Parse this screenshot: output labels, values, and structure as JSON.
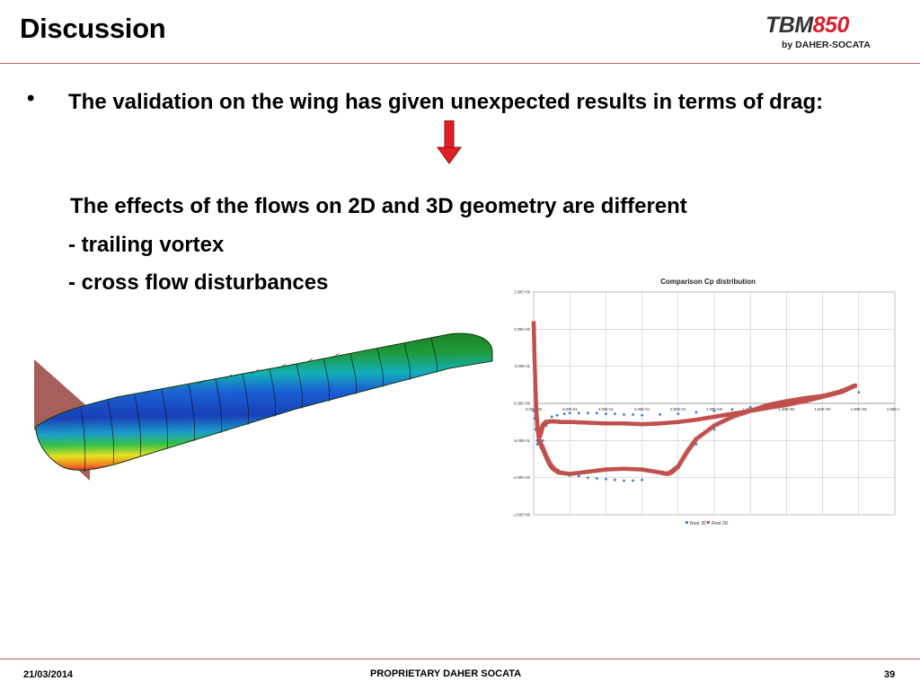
{
  "slide": {
    "title": "Discussion",
    "logo": {
      "brand_tbm": "TBM",
      "brand_num": "850",
      "sub": "by DAHER-SOCATA"
    },
    "bullet_marker": "•",
    "bullet": "The validation on the wing has given unexpected results in terms of drag:",
    "effects_line": "The effects of the flows on 2D and 3D geometry are different",
    "item1": "- trailing vortex",
    "item2": "- cross flow disturbances",
    "arrow_color": "#e31e24"
  },
  "footer": {
    "date": "21/03/2014",
    "center": "PROPRIETARY DAHER SOCATA",
    "page": "39"
  },
  "chart_data": {
    "type": "scatter",
    "title": "Comparison Cp distribution",
    "xlim": [
      0,
      2
    ],
    "ylim": [
      -1.5,
      1.5
    ],
    "x_ticks": [
      "0.00E+00",
      "2.00E-01",
      "4.00E-01",
      "6.00E-01",
      "8.00E-01",
      "1.00E+00",
      "1.20E+00",
      "1.40E+00",
      "1.60E+00",
      "1.80E+00",
      "2.00E+00"
    ],
    "y_ticks": [
      "1.50E+00",
      "1.00E+00",
      "5.00E-01",
      "0.00E+00",
      "-5.00E-01",
      "-1.00E+00",
      "-1.50E+00"
    ],
    "grid": true,
    "legend_position": "bottom",
    "series": [
      {
        "name": "Root 3D",
        "color": "#4f81bd",
        "x": [
          0.0,
          0.005,
          0.01,
          0.02,
          0.03,
          0.05,
          0.07,
          0.1,
          0.13,
          0.17,
          0.2,
          0.25,
          0.3,
          0.35,
          0.4,
          0.45,
          0.5,
          0.55,
          0.6,
          0.7,
          0.8,
          0.9,
          1.0,
          1.1,
          1.2,
          1.3,
          1.4,
          1.5,
          1.6,
          1.7,
          1.78,
          1.8,
          0.01,
          0.02,
          0.04,
          0.06,
          0.08,
          0.1,
          0.13,
          0.16,
          0.2,
          0.25,
          0.3,
          0.35,
          0.4,
          0.45,
          0.5,
          0.55,
          0.6,
          0.78,
          0.9,
          1.0,
          1.1,
          1.2,
          1.3,
          1.4
        ],
        "y": [
          -0.1,
          -0.2,
          -0.35,
          -0.5,
          -0.55,
          -0.5,
          -0.3,
          -0.18,
          -0.16,
          -0.14,
          -0.13,
          -0.13,
          -0.13,
          -0.13,
          -0.14,
          -0.14,
          -0.15,
          -0.15,
          -0.16,
          -0.15,
          -0.14,
          -0.12,
          -0.1,
          -0.08,
          -0.05,
          -0.02,
          0.01,
          0.05,
          0.1,
          0.18,
          0.25,
          0.15,
          -0.1,
          -0.55,
          -0.6,
          -0.7,
          -0.8,
          -0.88,
          -0.93,
          -0.95,
          -0.97,
          -0.98,
          -1.0,
          -1.01,
          -1.02,
          -1.03,
          -1.04,
          -1.04,
          -1.03,
          -0.87,
          -0.55,
          -0.35,
          -0.2,
          -0.1,
          -0.05,
          0.0
        ]
      },
      {
        "name": "Root 2D",
        "color": "#c0504d",
        "upper_x": [
          0.0,
          0.002,
          0.005,
          0.01,
          0.015,
          0.02,
          0.03,
          0.04,
          0.05,
          0.07,
          0.1,
          0.15,
          0.2,
          0.3,
          0.4,
          0.5,
          0.6,
          0.7,
          0.8,
          0.9,
          1.0,
          1.1,
          1.2,
          1.3,
          1.4,
          1.5,
          1.6,
          1.7,
          1.78
        ],
        "upper_y": [
          1.08,
          0.9,
          0.6,
          0.2,
          -0.1,
          -0.3,
          -0.45,
          -0.4,
          -0.3,
          -0.25,
          -0.24,
          -0.25,
          -0.25,
          -0.26,
          -0.27,
          -0.27,
          -0.28,
          -0.27,
          -0.25,
          -0.22,
          -0.18,
          -0.14,
          -0.1,
          -0.06,
          -0.02,
          0.03,
          0.09,
          0.15,
          0.24
        ],
        "lower_x": [
          0.02,
          0.03,
          0.05,
          0.07,
          0.09,
          0.11,
          0.14,
          0.2,
          0.3,
          0.4,
          0.5,
          0.6,
          0.7,
          0.74,
          0.76,
          0.8,
          0.85,
          0.9,
          1.0,
          1.1,
          1.2,
          1.3,
          1.4,
          1.5,
          1.6,
          1.7,
          1.78
        ],
        "lower_y": [
          -0.3,
          -0.5,
          -0.6,
          -0.72,
          -0.82,
          -0.88,
          -0.93,
          -0.95,
          -0.92,
          -0.89,
          -0.88,
          -0.89,
          -0.93,
          -0.95,
          -0.93,
          -0.85,
          -0.65,
          -0.48,
          -0.3,
          -0.18,
          -0.1,
          -0.02,
          0.03,
          0.07,
          0.1,
          0.16,
          0.24
        ]
      }
    ]
  }
}
